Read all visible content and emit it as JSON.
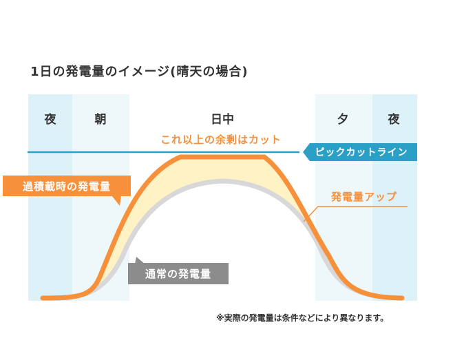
{
  "title": "1日の発電量のイメージ(晴天の場合)",
  "periods": [
    "夜",
    "朝",
    "日中",
    "夕",
    "夜"
  ],
  "labels": {
    "cut_surplus": "これ以上の余剰はカット",
    "peak_cut_line": "ピックカットライン",
    "loaded_generation": "過積載時の発電量",
    "generation_up": "発電量アップ",
    "normal_generation": "通常の発電量"
  },
  "note": "※実際の発電量は条件などにより異なります。",
  "colors": {
    "night_band": "#ddf1f8",
    "morning_band": "#eef8fb",
    "orange": "#f7903a",
    "yellow_fill": "#fff2c4",
    "normal_gray": "#d8d8d8",
    "peak_line": "#2ba0c6",
    "gray_label": "#8c8c8c"
  }
}
